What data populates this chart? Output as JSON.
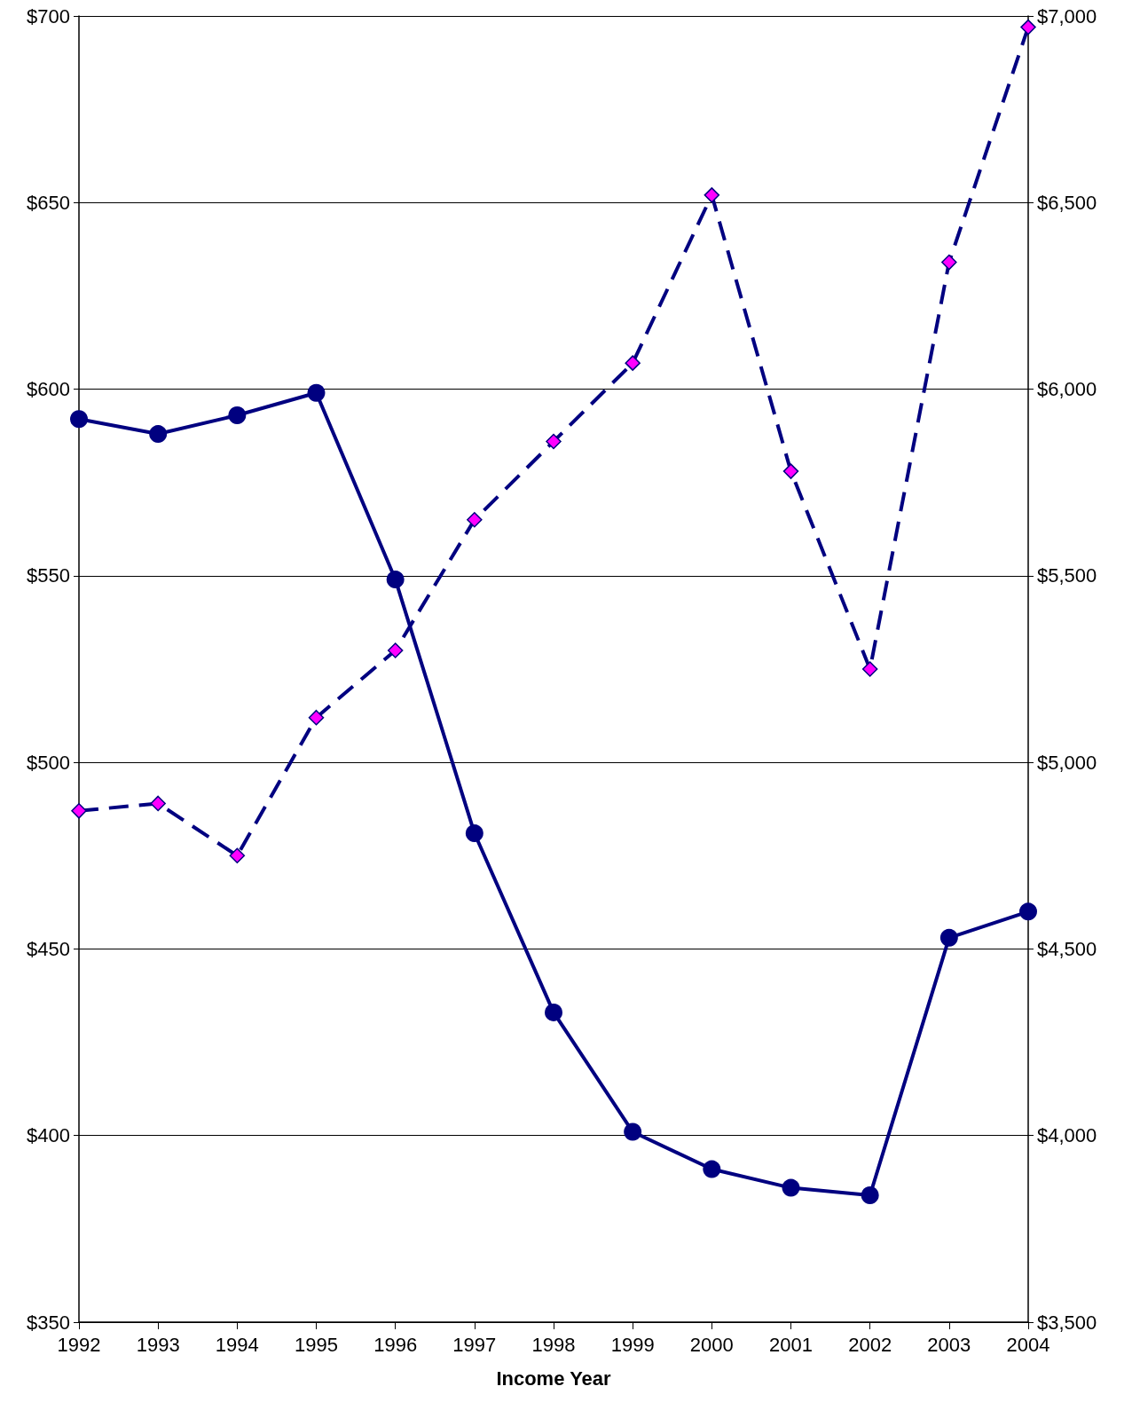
{
  "chart_data": {
    "type": "line",
    "xlabel": "Income Year",
    "categories": [
      "1992",
      "1993",
      "1994",
      "1995",
      "1996",
      "1997",
      "1998",
      "1999",
      "2000",
      "2001",
      "2002",
      "2003",
      "2004"
    ],
    "series": [
      {
        "color": "#000080",
        "marker": "circle",
        "line_style": "solid",
        "values": [
          592,
          588,
          593,
          599,
          549,
          481,
          433,
          401,
          391,
          386,
          384,
          453,
          460
        ]
      },
      {
        "color": "#000080",
        "colors": [
          "#ff00ff",
          "#ff00ff",
          "#ff00ff",
          "#ff00ff",
          "#ff00ff",
          "#ff00ff",
          "#ff00ff",
          "#ff00ff",
          "#ff00ff",
          "#ff00ff",
          "#ff00ff",
          "#ff00ff",
          "#ff00ff"
        ],
        "marker": "diamond",
        "line_style": "dashed",
        "axis": "y2",
        "values": [
          4870,
          4890,
          4750,
          5120,
          5300,
          5650,
          5860,
          6070,
          6520,
          5780,
          5250,
          6340,
          6970
        ]
      }
    ],
    "ylim": [
      350,
      700
    ],
    "yticks": [
      {
        "value": 350,
        "label": "$350"
      },
      {
        "value": 400,
        "label": "$400"
      },
      {
        "value": 450,
        "label": "$450"
      },
      {
        "value": 500,
        "label": "$500"
      },
      {
        "value": 550,
        "label": "$550"
      },
      {
        "value": 600,
        "label": "$600"
      },
      {
        "value": 650,
        "label": "$650"
      },
      {
        "value": 700,
        "label": "$700"
      }
    ],
    "y2lim": [
      3500,
      7000
    ],
    "y2ticks": [
      {
        "value": 3500,
        "label": "$3,500"
      },
      {
        "value": 4000,
        "label": "$4,000"
      },
      {
        "value": 4500,
        "label": "$4,500"
      },
      {
        "value": 5000,
        "label": "$5,000"
      },
      {
        "value": 5500,
        "label": "$5,500"
      },
      {
        "value": 6000,
        "label": "$6,000"
      },
      {
        "value": 6500,
        "label": "$6,500"
      },
      {
        "value": 7000,
        "label": "$7,000"
      }
    ],
    "grid": "y"
  }
}
